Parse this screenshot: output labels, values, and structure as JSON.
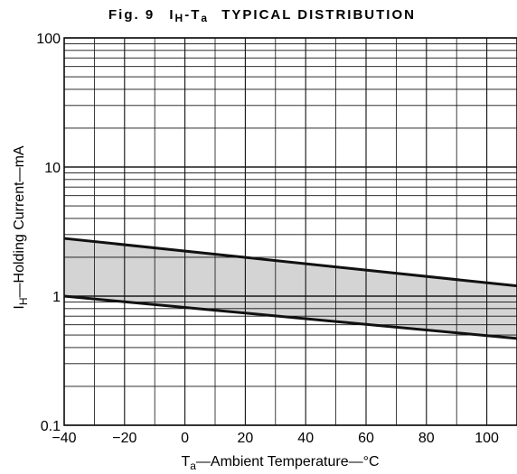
{
  "chart_data": {
    "type": "area",
    "title_prefix": "Fig. 9",
    "title_main": "I",
    "title_sub1": "H",
    "title_mid": "-T",
    "title_sub2": "a",
    "title_suffix": "TYPICAL DISTRIBUTION",
    "xlabel_main": "T",
    "xlabel_sub": "a",
    "xlabel_rest": "—Ambient Temperature—°C",
    "ylabel_main": "I",
    "ylabel_sub": "H",
    "ylabel_rest": "—Holding Current—mA",
    "y_scale": "log",
    "xlim": [
      -40,
      110
    ],
    "ylim": [
      0.1,
      100
    ],
    "x_ticks": [
      -40,
      -20,
      0,
      20,
      40,
      60,
      80,
      100
    ],
    "x_tick_labels": [
      "−40",
      "−20",
      "0",
      "20",
      "40",
      "60",
      "80",
      "100"
    ],
    "y_ticks": [
      0.1,
      1,
      10,
      100
    ],
    "y_tick_labels": [
      "0.1",
      "1",
      "10",
      "100"
    ],
    "grid": true,
    "series": [
      {
        "x": [
          -40,
          110
        ],
        "y": [
          2.8,
          1.2
        ]
      },
      {
        "x": [
          -40,
          110
        ],
        "y": [
          1.0,
          0.47
        ]
      }
    ],
    "band_fill": "#d4d4d4",
    "line_color": "#111111"
  }
}
